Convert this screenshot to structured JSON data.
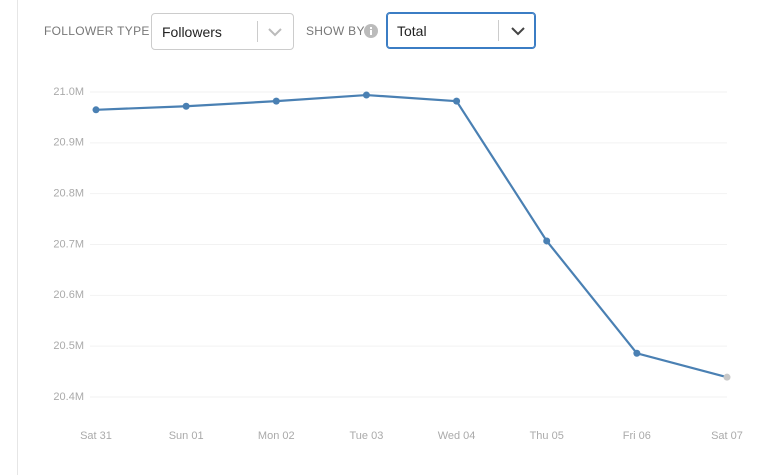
{
  "controls": {
    "follower_type_label": "FOLLOWER TYPE",
    "follower_type_value": "Followers",
    "show_by_label": "SHOW BY",
    "show_by_value": "Total"
  },
  "chart_data": {
    "type": "line",
    "categories": [
      "Sat 31",
      "Sun 01",
      "Mon 02",
      "Tue 03",
      "Wed 04",
      "Thu 05",
      "Fri 06",
      "Sat 07"
    ],
    "series": [
      {
        "color": "#4a80b3",
        "values": [
          20.965,
          20.972,
          20.982,
          20.994,
          20.982,
          20.707,
          20.486,
          20.439
        ],
        "point_colors": [
          "#4a80b3",
          "#4a80b3",
          "#4a80b3",
          "#4a80b3",
          "#4a80b3",
          "#4a80b3",
          "#4a80b3",
          "#c8c8c8"
        ]
      }
    ],
    "ylim": [
      20.4,
      21.0
    ],
    "yticks": [
      {
        "value": 20.4,
        "label": "20.4M"
      },
      {
        "value": 20.5,
        "label": "20.5M"
      },
      {
        "value": 20.6,
        "label": "20.6M"
      },
      {
        "value": 20.7,
        "label": "20.7M"
      },
      {
        "value": 20.8,
        "label": "20.8M"
      },
      {
        "value": 20.9,
        "label": "20.9M"
      },
      {
        "value": 21.0,
        "label": "21.0M"
      }
    ],
    "grid": true
  }
}
